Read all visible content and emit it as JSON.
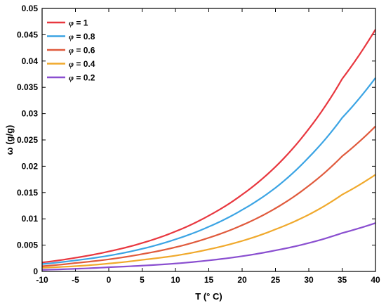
{
  "chart_data": {
    "type": "line",
    "xlabel": "T (° C)",
    "ylabel": "ω (g/g)",
    "xlim": [
      -10,
      40
    ],
    "ylim": [
      0,
      0.05
    ],
    "x_ticks": [
      -10,
      -5,
      0,
      5,
      10,
      15,
      20,
      25,
      30,
      35,
      40
    ],
    "y_ticks": [
      0,
      0.005,
      0.01,
      0.015,
      0.02,
      0.025,
      0.03,
      0.035,
      0.04,
      0.045,
      0.05
    ],
    "x_tick_labels": [
      "-10",
      "-5",
      "0",
      "5",
      "10",
      "15",
      "20",
      "25",
      "30",
      "35",
      "40"
    ],
    "y_tick_labels": [
      "0",
      "0.005",
      "0.01",
      "0.015",
      "0.02",
      "0.025",
      "0.03",
      "0.035",
      "0.04",
      "0.045",
      "0.05"
    ],
    "grid": false,
    "legend_position": "top-left",
    "x": [
      -10,
      -5,
      0,
      5,
      10,
      15,
      20,
      25,
      30,
      35,
      40
    ],
    "series": [
      {
        "name": "φ = 1",
        "legend_symbol": "φ",
        "legend_value": "= 1",
        "color": "#e8373f",
        "values": [
          0.0017,
          0.0026,
          0.0038,
          0.0054,
          0.0076,
          0.0106,
          0.0146,
          0.0199,
          0.0271,
          0.0366,
          0.046
        ]
      },
      {
        "name": "φ = 0.8",
        "legend_symbol": "φ",
        "legend_value": "= 0.8",
        "color": "#3ba4e4",
        "values": [
          0.0014,
          0.0021,
          0.003,
          0.0043,
          0.0061,
          0.0085,
          0.0117,
          0.0159,
          0.0217,
          0.0292,
          0.0368
        ]
      },
      {
        "name": "φ = 0.6",
        "legend_symbol": "φ",
        "legend_value": "= 0.6",
        "color": "#e05a3c",
        "values": [
          0.001,
          0.0016,
          0.0023,
          0.0033,
          0.0046,
          0.0064,
          0.0088,
          0.012,
          0.0163,
          0.0219,
          0.0276
        ]
      },
      {
        "name": "φ = 0.4",
        "legend_symbol": "φ",
        "legend_value": "= 0.4",
        "color": "#f0a92c",
        "values": [
          0.0007,
          0.001,
          0.0015,
          0.0022,
          0.003,
          0.0042,
          0.0058,
          0.008,
          0.0108,
          0.0146,
          0.0184
        ]
      },
      {
        "name": "φ = 0.2",
        "legend_symbol": "φ",
        "legend_value": "= 0.2",
        "color": "#8a4fd0",
        "values": [
          0.0003,
          0.0005,
          0.0008,
          0.0011,
          0.0015,
          0.0021,
          0.0029,
          0.004,
          0.0054,
          0.0073,
          0.0092
        ]
      }
    ]
  }
}
